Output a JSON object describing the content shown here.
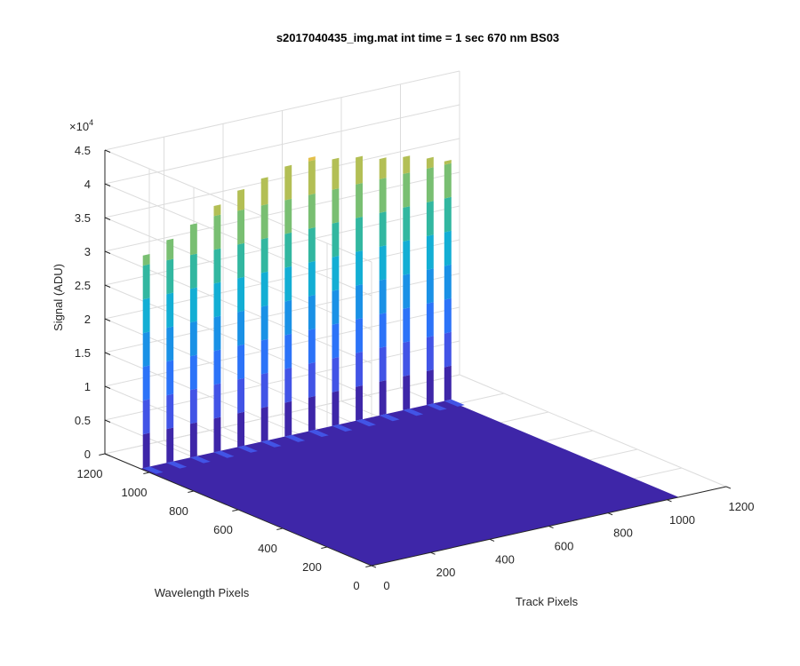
{
  "chart_data": {
    "type": "surface",
    "title": "s2017040435_img.mat int time = 1 sec  670 nm BS03",
    "xlabel": "Track Pixels",
    "ylabel": "Wavelength Pixels",
    "zlabel": "Signal (ADU)",
    "x_ticks": [
      "0",
      "200",
      "400",
      "600",
      "800",
      "1000",
      "1200"
    ],
    "y_ticks": [
      "0",
      "200",
      "400",
      "600",
      "800",
      "1000",
      "1200"
    ],
    "z_ticks": [
      "0",
      "0.5",
      "1",
      "1.5",
      "2",
      "2.5",
      "3",
      "3.5",
      "4",
      "4.5"
    ],
    "z_exponent_prefix": "×10",
    "z_exponent": "4",
    "xlim": [
      0,
      1200
    ],
    "ylim": [
      0,
      1200
    ],
    "zlim": [
      0,
      45000
    ],
    "floor_signal": 0,
    "ridge_extent_track": [
      0,
      1040
    ],
    "ridge_wavelength_peak": 1040,
    "ridges": [
      {
        "track": 20,
        "peak": 31500
      },
      {
        "track": 100,
        "peak": 33000
      },
      {
        "track": 180,
        "peak": 34500
      },
      {
        "track": 260,
        "peak": 36500
      },
      {
        "track": 340,
        "peak": 38000
      },
      {
        "track": 420,
        "peak": 39000
      },
      {
        "track": 500,
        "peak": 40000
      },
      {
        "track": 580,
        "peak": 40500
      },
      {
        "track": 660,
        "peak": 39500
      },
      {
        "track": 740,
        "peak": 39000
      },
      {
        "track": 820,
        "peak": 38000
      },
      {
        "track": 900,
        "peak": 37500
      },
      {
        "track": 980,
        "peak": 36500
      },
      {
        "track": 1040,
        "peak": 35500
      }
    ],
    "colormap": [
      "#3e26a8",
      "#4254e6",
      "#2c73f8",
      "#1a91e6",
      "#13aed4",
      "#32b7a0",
      "#79bf72",
      "#b3bf55",
      "#e3c04b"
    ]
  }
}
